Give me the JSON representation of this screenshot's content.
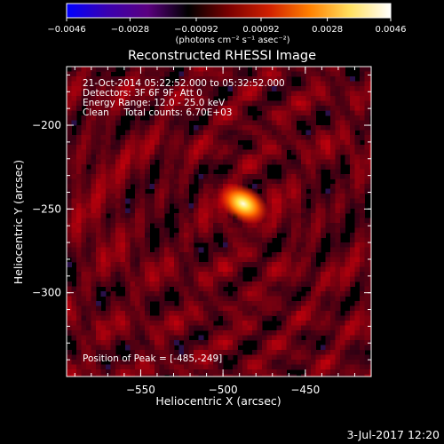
{
  "chart_data": {
    "type": "heatmap",
    "title": "Reconstructed RHESSI Image",
    "xlabel": "Heliocentric X (arcsec)",
    "ylabel": "Heliocentric Y (arcsec)",
    "xlim": [
      -595,
      -410
    ],
    "ylim": [
      -350,
      -165
    ],
    "xticks": [
      -550,
      -500,
      -450
    ],
    "yticks": [
      -200,
      -250,
      -300
    ],
    "xtick_labels": [
      "−550",
      "−500",
      "−450"
    ],
    "ytick_labels": [
      "−200",
      "−250",
      "−300"
    ],
    "peak": {
      "x": -485,
      "y": -249
    },
    "colorbar": {
      "range": [
        -0.0046,
        0.0046
      ],
      "tick_labels": [
        "−0.0046",
        "−0.0028",
        "−0.00092",
        "0.00092",
        "0.0028",
        "0.0046"
      ],
      "units": "(photons cm⁻² s⁻¹ asec⁻²)",
      "colors": [
        "#0000ff",
        "#3a00b0",
        "#5a0080",
        "#000000",
        "#7a0000",
        "#d02000",
        "#ff8000",
        "#ffe060",
        "#ffffff"
      ]
    },
    "annotations": [
      "21-Oct-2014 05:22:52.000 to 05:32:52.000",
      "Detectors: 3F 6F 9F, Att 0",
      "Energy Range: 12.0 - 25.0 keV",
      "Clean     Total counts: 6.70E+03",
      "Position of Peak = [-485,-249]"
    ]
  },
  "footer": {
    "date": "3-Jul-2017 12:20"
  }
}
